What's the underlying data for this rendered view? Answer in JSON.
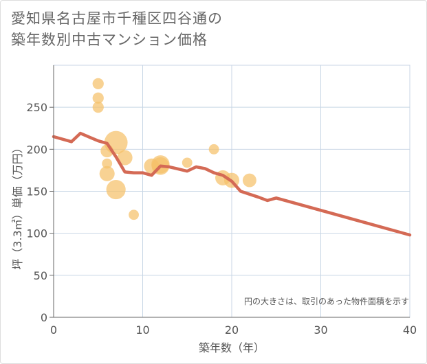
{
  "title": {
    "line1": "愛知県名古屋市千種区四谷通の",
    "line2": "築年数別中古マンション価格"
  },
  "chart_data": {
    "type": "scatter",
    "xlabel": "築年数（年）",
    "ylabel": "坪（3.3㎡）単価（万円）",
    "xlim": [
      0,
      40
    ],
    "ylim": [
      0,
      300
    ],
    "xticks": [
      0,
      10,
      20,
      30,
      40
    ],
    "yticks": [
      0,
      50,
      100,
      150,
      200,
      250
    ],
    "grid": true,
    "note": "円の大きさは、取引のあった物件面積を示す",
    "colors": {
      "bubble": "#f5c06a",
      "line": "#d46a55",
      "grid": "#c8d6e5",
      "axis": "#666666"
    },
    "bubbles": [
      {
        "x": 5,
        "y": 278,
        "size": 60
      },
      {
        "x": 5,
        "y": 261,
        "size": 60
      },
      {
        "x": 5,
        "y": 250,
        "size": 60
      },
      {
        "x": 6,
        "y": 198,
        "size": 80
      },
      {
        "x": 6,
        "y": 183,
        "size": 50
      },
      {
        "x": 6,
        "y": 171,
        "size": 110
      },
      {
        "x": 7,
        "y": 208,
        "size": 260
      },
      {
        "x": 7,
        "y": 152,
        "size": 180
      },
      {
        "x": 8,
        "y": 190,
        "size": 110
      },
      {
        "x": 9,
        "y": 122,
        "size": 50
      },
      {
        "x": 11,
        "y": 180,
        "size": 110
      },
      {
        "x": 12,
        "y": 182,
        "size": 160
      },
      {
        "x": 12,
        "y": 180,
        "size": 150
      },
      {
        "x": 15,
        "y": 184,
        "size": 50
      },
      {
        "x": 18,
        "y": 200,
        "size": 50
      },
      {
        "x": 19,
        "y": 166,
        "size": 110
      },
      {
        "x": 20,
        "y": 163,
        "size": 110
      },
      {
        "x": 22,
        "y": 163,
        "size": 90
      }
    ],
    "trend": {
      "x": [
        0,
        2,
        3,
        5,
        6,
        7,
        8,
        9,
        10,
        11,
        12,
        13,
        15,
        16,
        17,
        18,
        19,
        20,
        21,
        23,
        24,
        25,
        40
      ],
      "y": [
        215,
        209,
        219,
        210,
        207,
        191,
        173,
        172,
        172,
        169,
        180,
        179,
        174,
        179,
        177,
        172,
        169,
        162,
        150,
        143,
        139,
        142,
        98
      ]
    }
  }
}
